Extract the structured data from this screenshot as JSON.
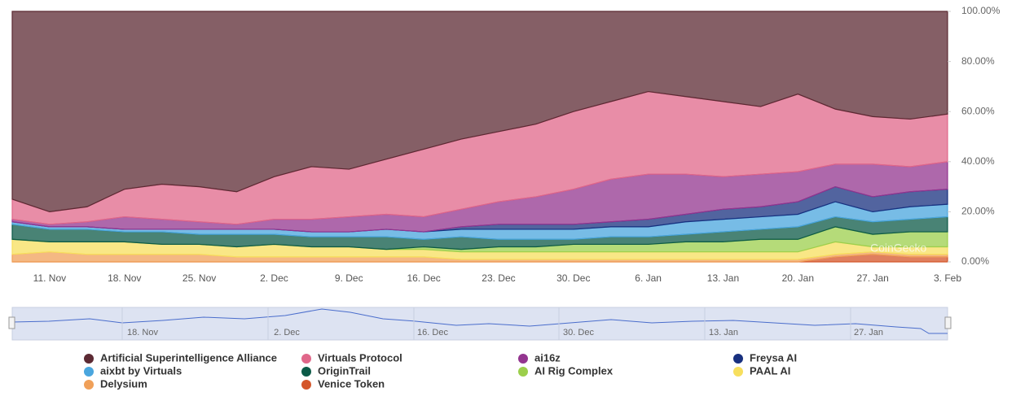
{
  "chart_data": {
    "type": "area",
    "stacked": "percent",
    "categories": [
      null,
      "11. Nov",
      null,
      "18. Nov",
      null,
      "25. Nov",
      null,
      "2. Dec",
      null,
      "9. Dec",
      null,
      "16. Dec",
      null,
      "23. Dec",
      null,
      "30. Dec",
      null,
      "6. Jan",
      null,
      "13. Jan",
      null,
      "20. Jan",
      null,
      "27. Jan",
      null,
      "3. Feb"
    ],
    "ylim": [
      0,
      100
    ],
    "yticks": [
      {
        "value": 0,
        "label": "0.00%"
      },
      {
        "value": 20,
        "label": "20.00%"
      },
      {
        "value": 40,
        "label": "40.00%"
      },
      {
        "value": 60,
        "label": "60.00%"
      },
      {
        "value": 80,
        "label": "80.00%"
      },
      {
        "value": 100,
        "label": "100.00%"
      }
    ],
    "grid": false,
    "legend": "bottom",
    "watermark": "CoinGecko",
    "navigator": {
      "labels": [
        "18. Nov",
        "2. Dec",
        "16. Dec",
        "30. Dec",
        "13. Jan",
        "27. Jan"
      ]
    },
    "series": [
      {
        "name": "Artificial Superintelligence Alliance",
        "color": "#5c2a33",
        "values": [
          75,
          80,
          78,
          71,
          69,
          70,
          72,
          66,
          62,
          63,
          59,
          55,
          51,
          48,
          45,
          40,
          36,
          32,
          34,
          36,
          38,
          33,
          39,
          42,
          43,
          41
        ]
      },
      {
        "name": "Virtuals Protocol",
        "color": "#e0678a",
        "values": [
          8,
          5,
          6,
          11,
          14,
          14,
          13,
          17,
          21,
          19,
          22,
          27,
          28,
          28,
          29,
          31,
          31,
          33,
          31,
          30,
          27,
          31,
          22,
          19,
          19,
          19
        ]
      },
      {
        "name": "ai16z",
        "color": "#93358f",
        "values": [
          1,
          1,
          2,
          5,
          4,
          3,
          2,
          4,
          5,
          6,
          6,
          6,
          7,
          9,
          11,
          14,
          17,
          18,
          16,
          13,
          13,
          12,
          9,
          13,
          10,
          11
        ]
      },
      {
        "name": "Freysa AI",
        "color": "#18307f",
        "values": [
          0,
          0,
          0,
          0,
          0,
          0,
          0,
          0,
          0,
          0,
          0,
          0,
          1,
          2,
          2,
          2,
          2,
          3,
          3,
          4,
          4,
          5,
          6,
          6,
          6,
          6
        ]
      },
      {
        "name": "aixbt by Virtuals",
        "color": "#4aa6de",
        "values": [
          1,
          1,
          1,
          1,
          1,
          2,
          2,
          2,
          2,
          2,
          3,
          3,
          3,
          4,
          4,
          4,
          4,
          4,
          5,
          5,
          5,
          5,
          6,
          4,
          5,
          5
        ]
      },
      {
        "name": "OriginTrail",
        "color": "#0c5a47",
        "values": [
          6,
          5,
          5,
          4,
          5,
          4,
          5,
          4,
          4,
          4,
          5,
          3,
          5,
          3,
          3,
          2,
          3,
          3,
          3,
          4,
          4,
          5,
          4,
          5,
          5,
          6
        ]
      },
      {
        "name": "AI Rig Complex",
        "color": "#9ccf4c",
        "values": [
          0,
          0,
          0,
          0,
          0,
          0,
          0,
          0,
          0,
          0,
          0,
          1,
          1,
          2,
          2,
          3,
          3,
          3,
          4,
          4,
          5,
          5,
          6,
          5,
          6,
          6
        ]
      },
      {
        "name": "PAAL AI",
        "color": "#f7df5e",
        "values": [
          6,
          4,
          5,
          5,
          4,
          4,
          4,
          5,
          4,
          4,
          3,
          3,
          3,
          3,
          3,
          3,
          3,
          3,
          3,
          3,
          3,
          3,
          5,
          2,
          3,
          3
        ]
      },
      {
        "name": "Delysium",
        "color": "#f0a059",
        "values": [
          3,
          4,
          3,
          3,
          3,
          3,
          2,
          2,
          2,
          2,
          2,
          2,
          1,
          1,
          1,
          1,
          1,
          1,
          1,
          1,
          1,
          1,
          1,
          1,
          1,
          1
        ]
      },
      {
        "name": "Venice Token",
        "color": "#d4562a",
        "values": [
          0,
          0,
          0,
          0,
          0,
          0,
          0,
          0,
          0,
          0,
          0,
          0,
          0,
          0,
          0,
          0,
          0,
          0,
          0,
          0,
          0,
          0,
          2,
          3,
          2,
          2
        ]
      }
    ]
  }
}
